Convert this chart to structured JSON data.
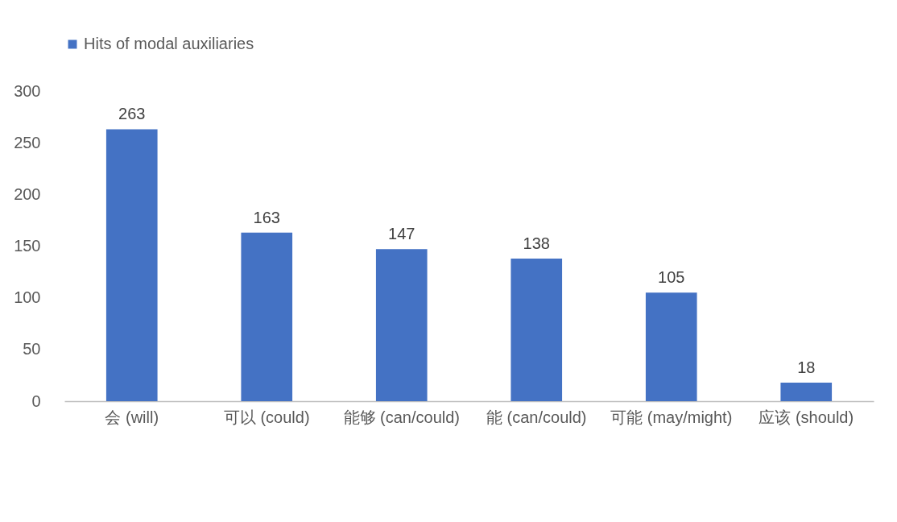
{
  "chart_data": {
    "type": "bar",
    "categories": [
      "会 (will)",
      "可以 (could)",
      "能够 (can/could)",
      "能 (can/could)",
      "可能 (may/might)",
      "应该 (should)"
    ],
    "series": [
      {
        "name": "Hits of modal auxiliaries",
        "color": "#4472c4",
        "values": [
          263,
          163,
          147,
          138,
          105,
          18
        ]
      }
    ],
    "ylim": [
      0,
      300
    ],
    "yticks": [
      0,
      50,
      100,
      150,
      200,
      250,
      300
    ],
    "grid": false,
    "legend": "top",
    "data_labels": true
  }
}
